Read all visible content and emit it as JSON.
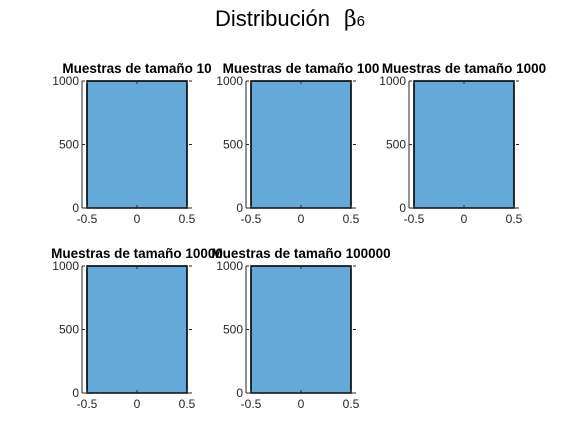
{
  "figure": {
    "title": "Distribución",
    "title_symbol": "β",
    "title_subscript": "6"
  },
  "colors": {
    "bar_fill": "#65a9d8",
    "bar_edge": "#000000",
    "axis": "#262626"
  },
  "chart_data": [
    {
      "type": "bar",
      "title": "Muestras de tamaño  10",
      "categories": [
        "-0.5 to 0.5"
      ],
      "values": [
        1000
      ],
      "xlim": [
        -0.55,
        0.55
      ],
      "ylim": [
        0,
        1000
      ],
      "xticks": [
        "-0.5",
        "0",
        "0.5"
      ],
      "yticks": [
        "0",
        "500",
        "1000"
      ],
      "grid": false,
      "bar_range": [
        -0.5,
        0.5
      ]
    },
    {
      "type": "bar",
      "title": "Muestras de tamaño  100",
      "categories": [
        "-0.5 to 0.5"
      ],
      "values": [
        1000
      ],
      "xlim": [
        -0.55,
        0.55
      ],
      "ylim": [
        0,
        1000
      ],
      "xticks": [
        "-0.5",
        "0",
        "0.5"
      ],
      "yticks": [
        "0",
        "500",
        "1000"
      ],
      "grid": false,
      "bar_range": [
        -0.5,
        0.5
      ]
    },
    {
      "type": "bar",
      "title": "Muestras de tamaño  1000",
      "categories": [
        "-0.5 to 0.5"
      ],
      "values": [
        1000
      ],
      "xlim": [
        -0.55,
        0.55
      ],
      "ylim": [
        0,
        1000
      ],
      "xticks": [
        "-0.5",
        "0",
        "0.5"
      ],
      "yticks": [
        "0",
        "500",
        "1000"
      ],
      "grid": false,
      "bar_range": [
        -0.5,
        0.5
      ]
    },
    {
      "type": "bar",
      "title": "Muestras de tamaño  10000",
      "categories": [
        "-0.5 to 0.5"
      ],
      "values": [
        1000
      ],
      "xlim": [
        -0.55,
        0.55
      ],
      "ylim": [
        0,
        1000
      ],
      "xticks": [
        "-0.5",
        "0",
        "0.5"
      ],
      "yticks": [
        "0",
        "500",
        "1000"
      ],
      "grid": false,
      "bar_range": [
        -0.5,
        0.5
      ]
    },
    {
      "type": "bar",
      "title": "Muestras de tamaño  100000",
      "categories": [
        "-0.5 to 0.5"
      ],
      "values": [
        1000
      ],
      "xlim": [
        -0.55,
        0.55
      ],
      "ylim": [
        0,
        1000
      ],
      "xticks": [
        "-0.5",
        "0",
        "0.5"
      ],
      "yticks": [
        "0",
        "500",
        "1000"
      ],
      "grid": false,
      "bar_range": [
        -0.5,
        0.5
      ]
    }
  ]
}
